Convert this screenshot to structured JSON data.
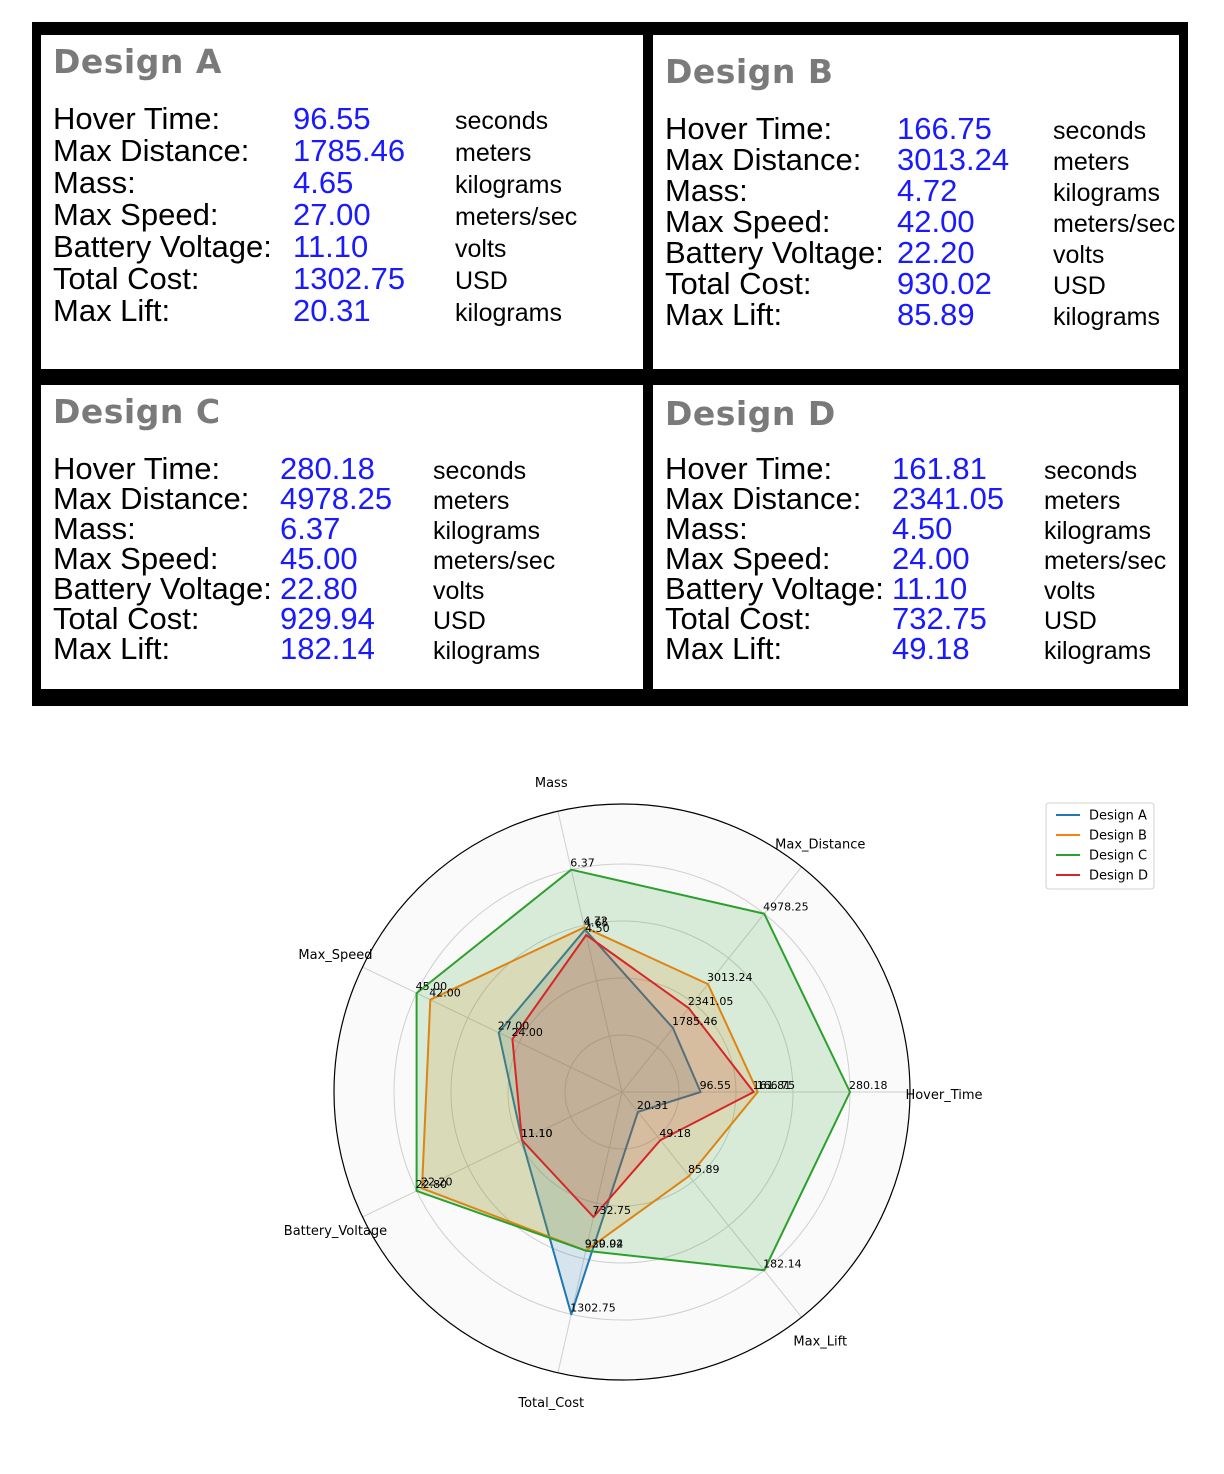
{
  "designs": [
    {
      "title": "Design A",
      "rows": [
        {
          "label": "Hover Time:",
          "value": "96.55",
          "unit": "seconds"
        },
        {
          "label": "Max Distance:",
          "value": "1785.46",
          "unit": "meters"
        },
        {
          "label": "Mass:",
          "value": "4.65",
          "unit": "kilograms"
        },
        {
          "label": "Max Speed:",
          "value": "27.00",
          "unit": "meters/sec"
        },
        {
          "label": "Battery Voltage:",
          "value": "11.10",
          "unit": "volts"
        },
        {
          "label": "Total Cost:",
          "value": "1302.75",
          "unit": "USD"
        },
        {
          "label": "Max Lift:",
          "value": "20.31",
          "unit": "kilograms"
        }
      ]
    },
    {
      "title": "Design B",
      "rows": [
        {
          "label": "Hover Time:",
          "value": "166.75",
          "unit": "seconds"
        },
        {
          "label": "Max Distance:",
          "value": "3013.24",
          "unit": "meters"
        },
        {
          "label": "Mass:",
          "value": "4.72",
          "unit": "kilograms"
        },
        {
          "label": "Max Speed:",
          "value": "42.00",
          "unit": "meters/sec"
        },
        {
          "label": "Battery Voltage:",
          "value": "22.20",
          "unit": "volts"
        },
        {
          "label": "Total Cost:",
          "value": "930.02",
          "unit": "USD"
        },
        {
          "label": "Max Lift:",
          "value": "85.89",
          "unit": "kilograms"
        }
      ]
    },
    {
      "title": "Design C",
      "rows": [
        {
          "label": "Hover Time:",
          "value": "280.18",
          "unit": "seconds"
        },
        {
          "label": "Max Distance:",
          "value": "4978.25",
          "unit": "meters"
        },
        {
          "label": "Mass:",
          "value": "6.37",
          "unit": "kilograms"
        },
        {
          "label": "Max Speed:",
          "value": "45.00",
          "unit": "meters/sec"
        },
        {
          "label": "Battery Voltage:",
          "value": "22.80",
          "unit": "volts"
        },
        {
          "label": "Total Cost:",
          "value": "929.94",
          "unit": "USD"
        },
        {
          "label": "Max Lift:",
          "value": "182.14",
          "unit": "kilograms"
        }
      ]
    },
    {
      "title": "Design D",
      "rows": [
        {
          "label": "Hover Time:",
          "value": "161.81",
          "unit": "seconds"
        },
        {
          "label": "Max Distance:",
          "value": "2341.05",
          "unit": "meters"
        },
        {
          "label": "Mass:",
          "value": "4.50",
          "unit": "kilograms"
        },
        {
          "label": "Max Speed:",
          "value": "24.00",
          "unit": "meters/sec"
        },
        {
          "label": "Battery Voltage:",
          "value": "11.10",
          "unit": "volts"
        },
        {
          "label": "Total Cost:",
          "value": "732.75",
          "unit": "USD"
        },
        {
          "label": "Max Lift:",
          "value": "49.18",
          "unit": "kilograms"
        }
      ]
    }
  ],
  "colors": {
    "value_text": "#1a1aff",
    "title_text": "#7a7a7a",
    "series": [
      "#1f77b4",
      "#ff7f0e",
      "#2ca02c",
      "#d62728"
    ]
  },
  "chart_data": {
    "type": "radar",
    "axes": [
      "Hover_Time",
      "Max_Distance",
      "Mass",
      "Max_Speed",
      "Battery_Voltage",
      "Total_Cost",
      "Max_Lift"
    ],
    "axis_max": [
      280.18,
      4978.25,
      6.37,
      45.0,
      22.8,
      1302.75,
      182.14
    ],
    "series": [
      {
        "name": "Design A",
        "values": [
          96.55,
          1785.46,
          4.65,
          27.0,
          11.1,
          1302.75,
          20.31
        ],
        "labels": [
          "96.55",
          "1785.46",
          "4.65",
          "27.00",
          "11.10",
          "1302.75",
          "20.31"
        ]
      },
      {
        "name": "Design B",
        "values": [
          166.75,
          3013.24,
          4.72,
          42.0,
          22.2,
          930.02,
          85.89
        ],
        "labels": [
          "166.75",
          "3013.24",
          "4.72",
          "42.00",
          "22.20",
          "930.02",
          "85.89"
        ]
      },
      {
        "name": "Design C",
        "values": [
          280.18,
          4978.25,
          6.37,
          45.0,
          22.8,
          929.94,
          182.14
        ],
        "labels": [
          "280.18",
          "4978.25",
          "6.37",
          "45.00",
          "22.80",
          "929.94",
          "182.14"
        ]
      },
      {
        "name": "Design D",
        "values": [
          161.81,
          2341.05,
          4.5,
          24.0,
          11.1,
          732.75,
          49.18
        ],
        "labels": [
          "161.81",
          "2341.05",
          "4.50",
          "24.00",
          "11.10",
          "732.75",
          "49.18"
        ]
      }
    ],
    "grid": true,
    "legend_position": "top-right"
  }
}
